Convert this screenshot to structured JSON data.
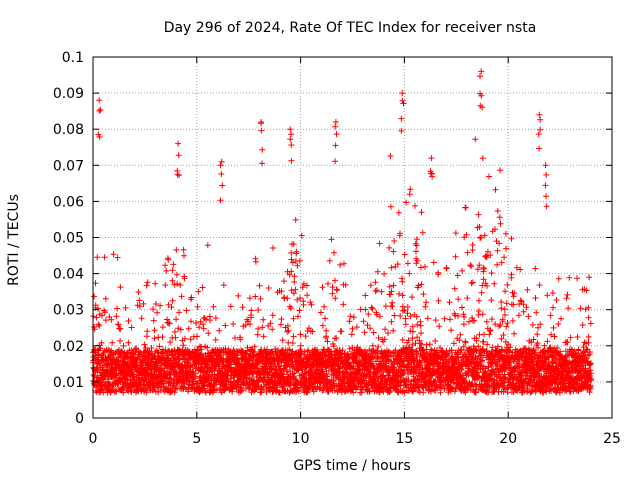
{
  "chart_data": {
    "type": "scatter",
    "title": "Day 296 of 2024, Rate Of TEC Index for receiver nsta",
    "xlabel": "GPS time / hours",
    "ylabel": "ROTI / TECUs",
    "xlim": [
      0,
      25
    ],
    "ylim": [
      0,
      0.1
    ],
    "xticks": [
      0,
      5,
      10,
      15,
      20,
      25
    ],
    "xtick_labels": [
      "0",
      "5",
      "10",
      "15",
      "20",
      "25"
    ],
    "yticks": [
      0,
      0.01,
      0.02,
      0.03,
      0.04,
      0.05,
      0.06,
      0.07,
      0.08,
      0.09,
      0.1
    ],
    "ytick_labels": [
      "0",
      "0.01",
      "0.02",
      "0.03",
      "0.04",
      "0.05",
      "0.06",
      "0.07",
      "0.08",
      "0.09",
      "0.1"
    ],
    "grid": true,
    "marker": "+",
    "series": [
      {
        "name": "ROTI",
        "color": "#ff0000",
        "x_range": [
          0,
          24
        ],
        "baseline_median": 0.013,
        "notable_peaks": [
          {
            "x": 0.3,
            "y": 0.088
          },
          {
            "x": 4.1,
            "y": 0.076
          },
          {
            "x": 6.2,
            "y": 0.071
          },
          {
            "x": 8.1,
            "y": 0.082
          },
          {
            "x": 9.5,
            "y": 0.08
          },
          {
            "x": 11.7,
            "y": 0.082
          },
          {
            "x": 14.9,
            "y": 0.09
          },
          {
            "x": 16.3,
            "y": 0.072
          },
          {
            "x": 18.7,
            "y": 0.096
          },
          {
            "x": 21.5,
            "y": 0.084
          },
          {
            "x": 21.8,
            "y": 0.07
          }
        ]
      }
    ]
  }
}
